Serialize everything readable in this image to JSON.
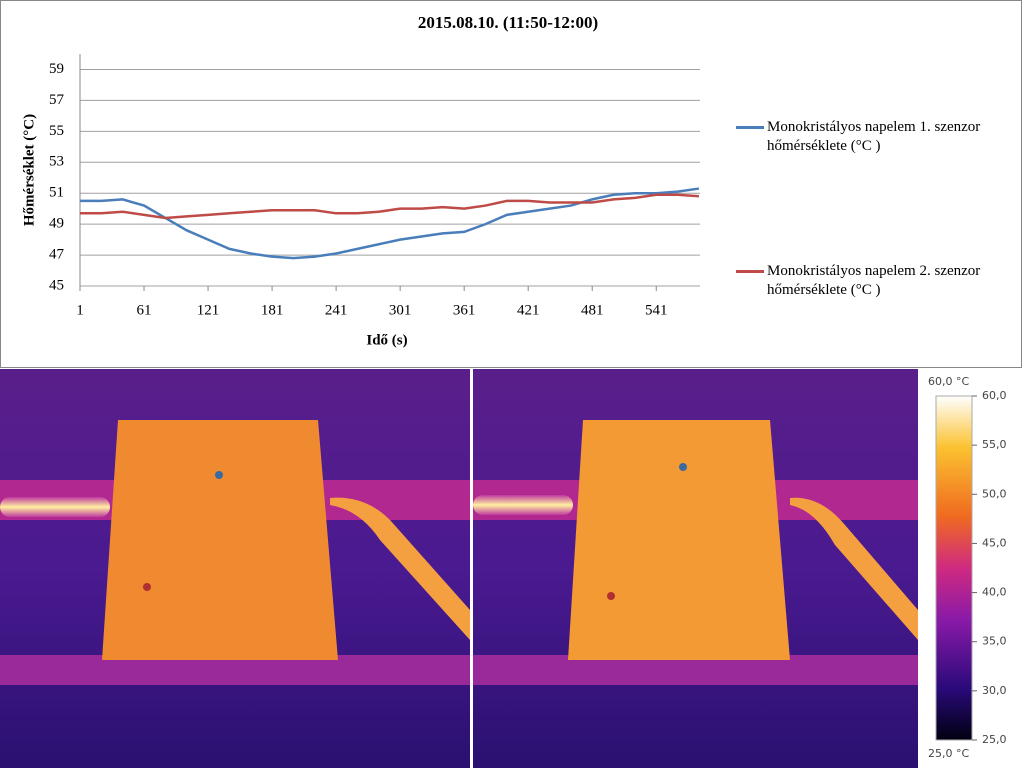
{
  "chart_data": {
    "type": "line",
    "title": "2015.08.10. (11:50-12:00)",
    "x_label": "Idő (s)",
    "y_label": "Hőmérséklet (°C)",
    "x": [
      1,
      21,
      41,
      61,
      81,
      101,
      121,
      141,
      161,
      181,
      201,
      221,
      241,
      261,
      281,
      301,
      321,
      341,
      361,
      381,
      401,
      421,
      441,
      461,
      481,
      501,
      521,
      541,
      561,
      581
    ],
    "series": [
      {
        "name": "Monokristályos napelem 1. szenzor hőmérséklete (°C )",
        "color": "#4a7ebb",
        "values": [
          50.5,
          50.5,
          50.6,
          50.2,
          49.4,
          48.6,
          48.0,
          47.4,
          47.1,
          46.9,
          46.8,
          46.9,
          47.1,
          47.4,
          47.7,
          48.0,
          48.2,
          48.4,
          48.5,
          49.0,
          49.6,
          49.8,
          50.0,
          50.2,
          50.6,
          50.9,
          51.0,
          51.0,
          51.1,
          51.3
        ]
      },
      {
        "name": "Monokristályos napelem 2. szenzor hőmérséklete (°C )",
        "color": "#be4b48",
        "values": [
          49.7,
          49.7,
          49.8,
          49.6,
          49.4,
          49.5,
          49.6,
          49.7,
          49.8,
          49.9,
          49.9,
          49.9,
          49.7,
          49.7,
          49.8,
          50.0,
          50.0,
          50.1,
          50.0,
          50.2,
          50.5,
          50.5,
          50.4,
          50.4,
          50.4,
          50.6,
          50.7,
          50.9,
          50.9,
          50.8
        ]
      }
    ],
    "xlim": [
      1,
      582
    ],
    "xticks": [
      1,
      61,
      121,
      181,
      241,
      301,
      361,
      421,
      481,
      541
    ],
    "ylim": [
      45,
      60
    ],
    "yticks": [
      45,
      47,
      49,
      51,
      53,
      55,
      57,
      59
    ],
    "grid": true
  },
  "thermal_scale": {
    "max_label": "60,0 °C",
    "min_label": "25,0 °C",
    "lim": [
      25,
      60
    ],
    "ticks": [
      {
        "value": 60,
        "label": "60,0"
      },
      {
        "value": 55,
        "label": "55,0"
      },
      {
        "value": 50,
        "label": "50,0"
      },
      {
        "value": 45,
        "label": "45,0"
      },
      {
        "value": 40,
        "label": "40,0"
      },
      {
        "value": 35,
        "label": "35,0"
      },
      {
        "value": 30,
        "label": "30,0"
      },
      {
        "value": 25,
        "label": "25,0"
      }
    ]
  }
}
